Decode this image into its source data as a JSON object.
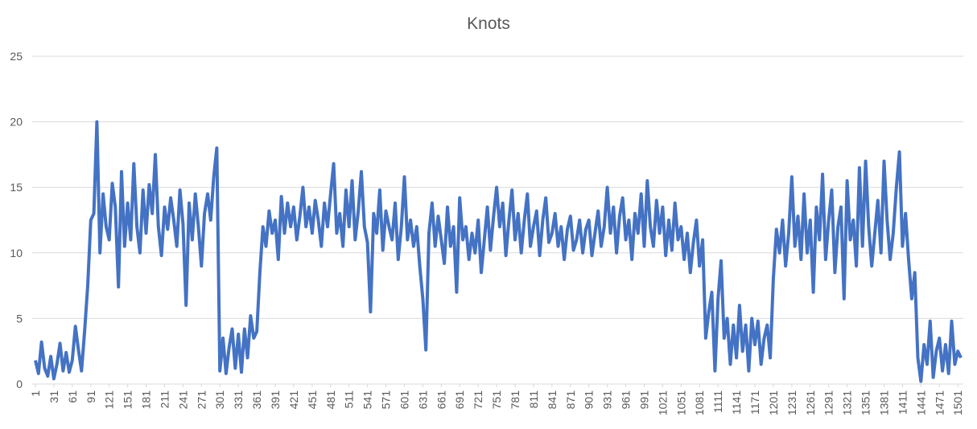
{
  "chart_data": {
    "type": "line",
    "title": "Knots",
    "color": "#4472c4",
    "grid": true,
    "xlim": [
      1,
      1506
    ],
    "ylim": [
      0,
      25
    ],
    "yticks": [
      0,
      5,
      10,
      15,
      20,
      25
    ],
    "xticks": [
      1,
      31,
      61,
      91,
      121,
      151,
      181,
      211,
      241,
      271,
      301,
      331,
      361,
      391,
      421,
      451,
      481,
      511,
      541,
      571,
      601,
      631,
      661,
      691,
      721,
      751,
      781,
      811,
      841,
      871,
      901,
      931,
      961,
      991,
      1021,
      1051,
      1081,
      1111,
      1141,
      1171,
      1201,
      1231,
      1261,
      1291,
      1321,
      1351,
      1381,
      1411,
      1441,
      1471,
      1501
    ],
    "x": [
      1,
      6,
      11,
      16,
      21,
      26,
      31,
      36,
      41,
      46,
      51,
      56,
      61,
      66,
      71,
      76,
      81,
      86,
      91,
      96,
      101,
      106,
      111,
      116,
      121,
      126,
      131,
      136,
      141,
      146,
      151,
      156,
      161,
      166,
      171,
      176,
      181,
      186,
      191,
      196,
      201,
      206,
      211,
      216,
      221,
      226,
      231,
      236,
      241,
      246,
      251,
      256,
      261,
      266,
      271,
      276,
      281,
      286,
      291,
      296,
      301,
      306,
      311,
      316,
      321,
      326,
      331,
      336,
      341,
      346,
      351,
      356,
      361,
      366,
      371,
      376,
      381,
      386,
      391,
      396,
      401,
      406,
      411,
      416,
      421,
      426,
      431,
      436,
      441,
      446,
      451,
      456,
      461,
      466,
      471,
      476,
      481,
      486,
      491,
      496,
      501,
      506,
      511,
      516,
      521,
      526,
      531,
      536,
      541,
      546,
      551,
      556,
      561,
      566,
      571,
      576,
      581,
      586,
      591,
      596,
      601,
      606,
      611,
      616,
      621,
      626,
      631,
      636,
      641,
      646,
      651,
      656,
      661,
      666,
      671,
      676,
      681,
      686,
      691,
      696,
      701,
      706,
      711,
      716,
      721,
      726,
      731,
      736,
      741,
      746,
      751,
      756,
      761,
      766,
      771,
      776,
      781,
      786,
      791,
      796,
      801,
      806,
      811,
      816,
      821,
      826,
      831,
      836,
      841,
      846,
      851,
      856,
      861,
      866,
      871,
      876,
      881,
      886,
      891,
      896,
      901,
      906,
      911,
      916,
      921,
      926,
      931,
      936,
      941,
      946,
      951,
      956,
      961,
      966,
      971,
      976,
      981,
      986,
      991,
      996,
      1001,
      1006,
      1011,
      1016,
      1021,
      1026,
      1031,
      1036,
      1041,
      1046,
      1051,
      1056,
      1061,
      1066,
      1071,
      1076,
      1081,
      1086,
      1091,
      1096,
      1101,
      1106,
      1111,
      1116,
      1121,
      1126,
      1131,
      1136,
      1141,
      1146,
      1151,
      1156,
      1161,
      1166,
      1171,
      1176,
      1181,
      1186,
      1191,
      1196,
      1201,
      1206,
      1211,
      1216,
      1221,
      1226,
      1231,
      1236,
      1241,
      1246,
      1251,
      1256,
      1261,
      1266,
      1271,
      1276,
      1281,
      1286,
      1291,
      1296,
      1301,
      1306,
      1311,
      1316,
      1321,
      1326,
      1331,
      1336,
      1341,
      1346,
      1351,
      1356,
      1361,
      1366,
      1371,
      1376,
      1381,
      1386,
      1391,
      1396,
      1401,
      1406,
      1411,
      1416,
      1421,
      1426,
      1431,
      1436,
      1441,
      1446,
      1451,
      1456,
      1461,
      1466,
      1471,
      1476,
      1481,
      1486,
      1491,
      1496,
      1501,
      1506
    ],
    "values": [
      1.8,
      0.8,
      3.2,
      1.2,
      0.6,
      2.1,
      0.4,
      1.5,
      3.1,
      1.0,
      2.4,
      0.9,
      1.8,
      4.4,
      2.6,
      1.0,
      4.0,
      7.5,
      12.5,
      13.0,
      20.0,
      10.0,
      14.5,
      12.0,
      11.0,
      15.3,
      13.5,
      7.4,
      16.2,
      10.5,
      13.8,
      11.0,
      16.8,
      12.0,
      10.0,
      14.8,
      11.5,
      15.2,
      13.0,
      17.5,
      12.0,
      9.8,
      13.5,
      11.8,
      14.2,
      12.5,
      10.5,
      14.8,
      12.2,
      6.0,
      13.8,
      11.0,
      14.5,
      12.0,
      9.0,
      13.0,
      14.5,
      12.5,
      15.8,
      18.0,
      1.0,
      3.5,
      0.8,
      2.8,
      4.2,
      1.2,
      3.8,
      0.9,
      4.2,
      2.0,
      5.2,
      3.5,
      4.0,
      8.5,
      12.0,
      10.5,
      13.2,
      11.5,
      12.5,
      9.5,
      14.3,
      11.5,
      13.8,
      12.0,
      13.5,
      11.0,
      12.8,
      15.0,
      12.0,
      13.5,
      11.5,
      14.0,
      12.5,
      10.5,
      13.8,
      12.0,
      14.5,
      16.8,
      11.5,
      13.0,
      10.5,
      14.8,
      12.0,
      15.5,
      11.0,
      13.2,
      16.2,
      12.0,
      10.8,
      5.5,
      13.0,
      11.5,
      14.8,
      10.2,
      13.2,
      12.0,
      11.0,
      13.8,
      9.5,
      12.0,
      15.8,
      11.0,
      12.5,
      10.5,
      12.0,
      9.0,
      6.5,
      2.6,
      11.5,
      13.8,
      10.5,
      12.8,
      11.0,
      9.2,
      13.5,
      10.5,
      12.0,
      7.0,
      14.2,
      11.0,
      12.0,
      9.5,
      11.5,
      10.0,
      12.5,
      8.5,
      11.0,
      13.5,
      10.2,
      12.8,
      15.0,
      12.0,
      13.8,
      9.8,
      12.5,
      14.8,
      11.0,
      13.0,
      10.0,
      12.5,
      14.5,
      10.5,
      12.0,
      13.2,
      9.8,
      12.5,
      14.2,
      10.8,
      11.5,
      13.0,
      10.5,
      12.0,
      9.5,
      11.8,
      12.8,
      10.2,
      11.0,
      12.5,
      10.0,
      11.8,
      12.5,
      9.8,
      11.5,
      13.2,
      10.5,
      12.0,
      15.0,
      11.5,
      13.5,
      10.0,
      12.8,
      14.2,
      11.0,
      12.5,
      9.5,
      13.0,
      11.5,
      14.5,
      10.5,
      15.5,
      12.0,
      10.5,
      14.0,
      11.5,
      13.5,
      9.8,
      12.5,
      10.2,
      13.8,
      11.0,
      12.0,
      9.5,
      11.5,
      8.5,
      10.8,
      12.5,
      9.0,
      11.0,
      3.5,
      5.5,
      7.0,
      1.0,
      6.5,
      9.4,
      3.5,
      5.0,
      1.5,
      4.5,
      2.0,
      6.0,
      2.5,
      4.5,
      1.0,
      5.0,
      3.0,
      4.8,
      1.5,
      3.5,
      4.5,
      2.0,
      8.0,
      11.8,
      10.0,
      12.5,
      9.0,
      11.5,
      15.8,
      10.5,
      12.8,
      9.5,
      14.5,
      10.0,
      12.5,
      7.0,
      13.5,
      11.0,
      16.0,
      9.5,
      12.5,
      14.8,
      8.5,
      12.0,
      13.5,
      6.5,
      15.5,
      11.0,
      12.5,
      9.0,
      16.5,
      10.5,
      17.0,
      12.0,
      9.0,
      11.5,
      14.0,
      10.0,
      17.0,
      12.5,
      9.5,
      11.5,
      15.0,
      17.7,
      10.5,
      13.0,
      9.5,
      6.5,
      8.5,
      2.0,
      0.2,
      3.0,
      1.5,
      4.8,
      0.5,
      2.5,
      3.5,
      1.0,
      3.0,
      0.8,
      4.8,
      1.5,
      2.5,
      2.0
    ]
  }
}
